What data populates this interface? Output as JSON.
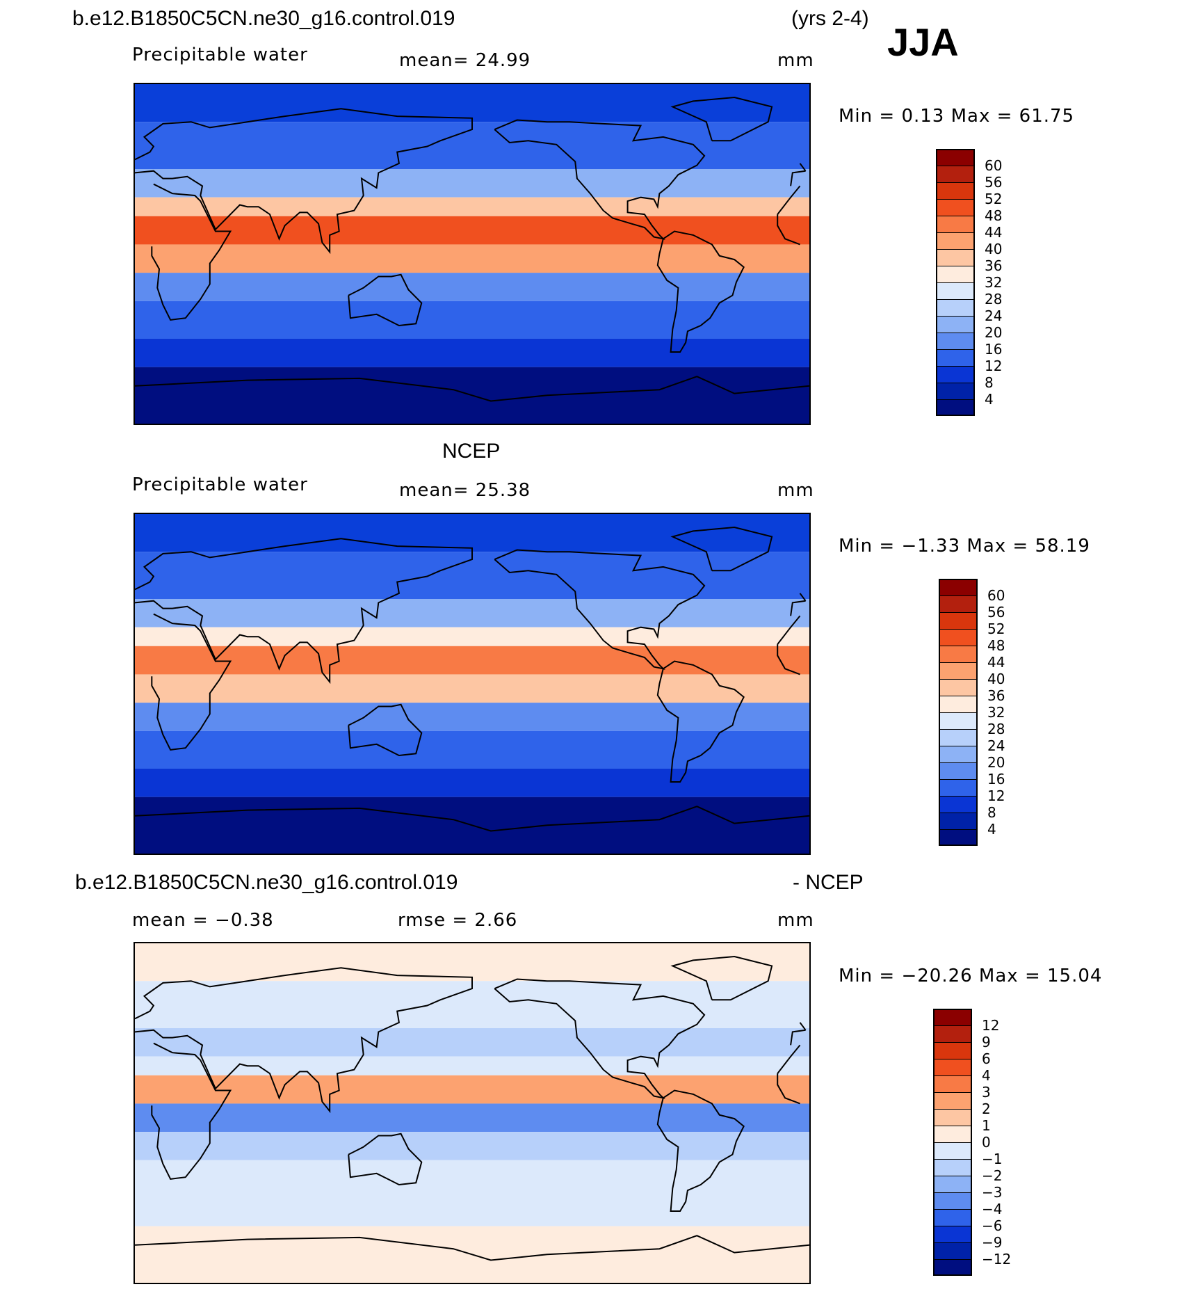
{
  "header": {
    "case_name": "b.e12.B1850C5CN.ne30_g16.control.019",
    "years": "(yrs 2-4)",
    "season": "JJA"
  },
  "panels": [
    {
      "id": "model",
      "title": "",
      "variable": "Precipitable water",
      "stat_text": "mean=   24.99",
      "units": "mm",
      "minmax": "Min =    0.13 Max =   61.75",
      "colorbar": {
        "ticks": [
          "60",
          "56",
          "52",
          "48",
          "44",
          "40",
          "36",
          "32",
          "28",
          "24",
          "20",
          "16",
          "12",
          "8",
          "4"
        ],
        "colors": [
          "#8b0000",
          "#b3200e",
          "#d9360d",
          "#f0501f",
          "#f87a45",
          "#fca270",
          "#fdc6a3",
          "#feecde",
          "#dce9fb",
          "#b7d0fa",
          "#8db2f5",
          "#5e8cf0",
          "#2f63ea",
          "#0a35d4",
          "#0022a8",
          "#000e80"
        ]
      },
      "zones": [
        {
          "band": "90N-70N",
          "color": "#0a3fd9"
        },
        {
          "band": "70N-45N",
          "color": "#2f63ea"
        },
        {
          "band": "45N-30N",
          "color": "#8db2f5"
        },
        {
          "band": "30N-20N",
          "color": "#fdc6a3"
        },
        {
          "band": "20N-5N",
          "color": "#f0501f"
        },
        {
          "band": "5N-10S",
          "color": "#fca270"
        },
        {
          "band": "10S-25S",
          "color": "#5e8cf0"
        },
        {
          "band": "25S-45S",
          "color": "#2f63ea"
        },
        {
          "band": "45S-60S",
          "color": "#0a35d4"
        },
        {
          "band": "60S-90S",
          "color": "#000e80"
        }
      ]
    },
    {
      "id": "obs",
      "title": "NCEP",
      "variable": "Precipitable water",
      "stat_text": "mean=   25.38",
      "units": "mm",
      "minmax": "Min =   −1.33 Max =   58.19",
      "colorbar": {
        "ticks": [
          "60",
          "56",
          "52",
          "48",
          "44",
          "40",
          "36",
          "32",
          "28",
          "24",
          "20",
          "16",
          "12",
          "8",
          "4"
        ],
        "colors": [
          "#8b0000",
          "#b3200e",
          "#d9360d",
          "#f0501f",
          "#f87a45",
          "#fca270",
          "#fdc6a3",
          "#feecde",
          "#dce9fb",
          "#b7d0fa",
          "#8db2f5",
          "#5e8cf0",
          "#2f63ea",
          "#0a35d4",
          "#0022a8",
          "#000e80"
        ]
      },
      "zones": [
        {
          "band": "90N-70N",
          "color": "#0a3fd9"
        },
        {
          "band": "70N-45N",
          "color": "#2f63ea"
        },
        {
          "band": "45N-30N",
          "color": "#8db2f5"
        },
        {
          "band": "30N-20N",
          "color": "#feecde"
        },
        {
          "band": "20N-5N",
          "color": "#f87a45"
        },
        {
          "band": "5N-10S",
          "color": "#fdc6a3"
        },
        {
          "band": "10S-25S",
          "color": "#5e8cf0"
        },
        {
          "band": "25S-45S",
          "color": "#2f63ea"
        },
        {
          "band": "45S-60S",
          "color": "#0a35d4"
        },
        {
          "band": "60S-90S",
          "color": "#000e80"
        }
      ]
    },
    {
      "id": "diff",
      "title_left": "b.e12.B1850C5CN.ne30_g16.control.019",
      "title_right": "- NCEP",
      "mean_text": "mean =   −0.38",
      "rmse_text": "rmse =    2.66",
      "units": "mm",
      "minmax": "Min = −20.26 Max =   15.04",
      "colorbar": {
        "ticks": [
          "12",
          "9",
          "6",
          "4",
          "3",
          "2",
          "1",
          "0",
          "−1",
          "−2",
          "−3",
          "−4",
          "−6",
          "−9",
          "−12"
        ],
        "colors": [
          "#8b0000",
          "#b3200e",
          "#d9360d",
          "#f0501f",
          "#f87a45",
          "#fca270",
          "#fdc6a3",
          "#feecde",
          "#dce9fb",
          "#b7d0fa",
          "#8db2f5",
          "#5e8cf0",
          "#2f63ea",
          "#0a35d4",
          "#0022a8",
          "#000e80"
        ]
      },
      "zones": [
        {
          "band": "90N-70N",
          "color": "#feecde"
        },
        {
          "band": "70N-45N",
          "color": "#dce9fb"
        },
        {
          "band": "45N-30N",
          "color": "#b7d0fa"
        },
        {
          "band": "30N-20N",
          "color": "#dce9fb"
        },
        {
          "band": "20N-5N",
          "color": "#fca270"
        },
        {
          "band": "5N-10S",
          "color": "#5e8cf0"
        },
        {
          "band": "10S-25S",
          "color": "#b7d0fa"
        },
        {
          "band": "25S-45S",
          "color": "#dce9fb"
        },
        {
          "band": "45S-60S",
          "color": "#dce9fb"
        },
        {
          "band": "60S-90S",
          "color": "#feecde"
        }
      ]
    }
  ]
}
